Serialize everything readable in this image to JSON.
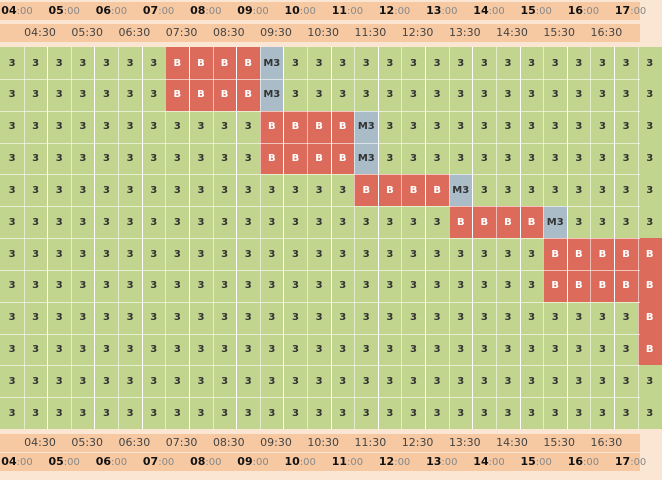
{
  "timeline": {
    "hours": [
      "04",
      "05",
      "06",
      "07",
      "08",
      "09",
      "10",
      "11",
      "12",
      "13",
      "14",
      "15",
      "16",
      "17"
    ],
    "hour_suffix": ":00",
    "half_first": "0",
    "half_labels": [
      "04:30",
      "05:30",
      "06:30",
      "07:30",
      "08:30",
      "09:30",
      "10:30",
      "11:30",
      "12:30",
      "13:30",
      "14:30",
      "15:30",
      "16:30"
    ]
  },
  "grid": {
    "rows": [
      [
        "3",
        "3",
        "3",
        "3",
        "3",
        "3",
        "3",
        "B",
        "B",
        "B",
        "B",
        "M3",
        "3",
        "3",
        "3",
        "3",
        "3",
        "3",
        "3",
        "3",
        "3",
        "3",
        "3",
        "3",
        "3",
        "3",
        "3",
        "3"
      ],
      [
        "3",
        "3",
        "3",
        "3",
        "3",
        "3",
        "3",
        "B",
        "B",
        "B",
        "B",
        "M3",
        "3",
        "3",
        "3",
        "3",
        "3",
        "3",
        "3",
        "3",
        "3",
        "3",
        "3",
        "3",
        "3",
        "3",
        "3",
        "3"
      ],
      [
        "3",
        "3",
        "3",
        "3",
        "3",
        "3",
        "3",
        "3",
        "3",
        "3",
        "3",
        "B",
        "B",
        "B",
        "B",
        "M3",
        "3",
        "3",
        "3",
        "3",
        "3",
        "3",
        "3",
        "3",
        "3",
        "3",
        "3",
        "3"
      ],
      [
        "3",
        "3",
        "3",
        "3",
        "3",
        "3",
        "3",
        "3",
        "3",
        "3",
        "3",
        "B",
        "B",
        "B",
        "B",
        "M3",
        "3",
        "3",
        "3",
        "3",
        "3",
        "3",
        "3",
        "3",
        "3",
        "3",
        "3",
        "3"
      ],
      [
        "3",
        "3",
        "3",
        "3",
        "3",
        "3",
        "3",
        "3",
        "3",
        "3",
        "3",
        "3",
        "3",
        "3",
        "3",
        "B",
        "B",
        "B",
        "B",
        "M3",
        "3",
        "3",
        "3",
        "3",
        "3",
        "3",
        "3",
        "3"
      ],
      [
        "3",
        "3",
        "3",
        "3",
        "3",
        "3",
        "3",
        "3",
        "3",
        "3",
        "3",
        "3",
        "3",
        "3",
        "3",
        "3",
        "3",
        "3",
        "3",
        "B",
        "B",
        "B",
        "B",
        "M3",
        "3",
        "3",
        "3",
        "3"
      ],
      [
        "3",
        "3",
        "3",
        "3",
        "3",
        "3",
        "3",
        "3",
        "3",
        "3",
        "3",
        "3",
        "3",
        "3",
        "3",
        "3",
        "3",
        "3",
        "3",
        "3",
        "3",
        "3",
        "3",
        "B",
        "B",
        "B",
        "B",
        "B"
      ],
      [
        "3",
        "3",
        "3",
        "3",
        "3",
        "3",
        "3",
        "3",
        "3",
        "3",
        "3",
        "3",
        "3",
        "3",
        "3",
        "3",
        "3",
        "3",
        "3",
        "3",
        "3",
        "3",
        "3",
        "B",
        "B",
        "B",
        "B",
        "B"
      ],
      [
        "3",
        "3",
        "3",
        "3",
        "3",
        "3",
        "3",
        "3",
        "3",
        "3",
        "3",
        "3",
        "3",
        "3",
        "3",
        "3",
        "3",
        "3",
        "3",
        "3",
        "3",
        "3",
        "3",
        "3",
        "3",
        "3",
        "3",
        "B"
      ],
      [
        "3",
        "3",
        "3",
        "3",
        "3",
        "3",
        "3",
        "3",
        "3",
        "3",
        "3",
        "3",
        "3",
        "3",
        "3",
        "3",
        "3",
        "3",
        "3",
        "3",
        "3",
        "3",
        "3",
        "3",
        "3",
        "3",
        "3",
        "B"
      ],
      [
        "3",
        "3",
        "3",
        "3",
        "3",
        "3",
        "3",
        "3",
        "3",
        "3",
        "3",
        "3",
        "3",
        "3",
        "3",
        "3",
        "3",
        "3",
        "3",
        "3",
        "3",
        "3",
        "3",
        "3",
        "3",
        "3",
        "3",
        "3"
      ],
      [
        "3",
        "3",
        "3",
        "3",
        "3",
        "3",
        "3",
        "3",
        "3",
        "3",
        "3",
        "3",
        "3",
        "3",
        "3",
        "3",
        "3",
        "3",
        "3",
        "3",
        "3",
        "3",
        "3",
        "3",
        "3",
        "3",
        "3",
        "3"
      ]
    ]
  },
  "colors": {
    "available": "#c2d58f",
    "busy": "#dc6b5b",
    "buffer": "#a9bcc8",
    "header": "#f7c9a3"
  }
}
